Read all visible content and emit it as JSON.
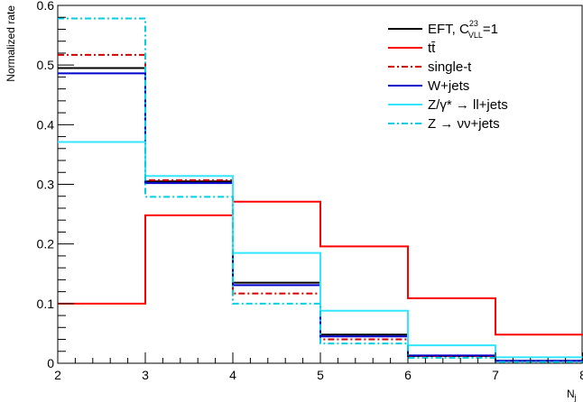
{
  "chart_data": {
    "type": "step-histogram",
    "xlabel": "N",
    "xlabel_sub": "j",
    "ylabel": "Normalized rate",
    "xlim": [
      2,
      8
    ],
    "ylim": [
      0,
      0.6
    ],
    "x_ticks": [
      "2",
      "3",
      "4",
      "5",
      "6",
      "7",
      "8"
    ],
    "y_ticks": [
      "0",
      "0.1",
      "0.2",
      "0.3",
      "0.4",
      "0.5",
      "0.6"
    ],
    "bin_edges": [
      2,
      3,
      4,
      5,
      6,
      7,
      8
    ],
    "legend_position": "top-right",
    "series": [
      {
        "name": "EFT, C",
        "sup": "23",
        "sub": "VLL",
        "tail": "=1",
        "color": "#000000",
        "dash": "solid",
        "values": [
          0.495,
          0.305,
          0.135,
          0.048,
          0.012,
          0.004
        ]
      },
      {
        "name": "tt̄",
        "color": "#ff0000",
        "dash": "solid",
        "values": [
          0.1,
          0.248,
          0.271,
          0.196,
          0.109,
          0.048
        ]
      },
      {
        "name": "single-t",
        "color": "#d40000",
        "dash": "dashdot",
        "values": [
          0.517,
          0.307,
          0.117,
          0.04,
          0.012,
          0.004
        ]
      },
      {
        "name": "W+jets",
        "color": "#0000cc",
        "dash": "solid",
        "values": [
          0.486,
          0.302,
          0.131,
          0.045,
          0.013,
          0.004
        ]
      },
      {
        "name": "Z/γ* → ll+jets",
        "color": "#33e6ff",
        "dash": "solid",
        "values": [
          0.371,
          0.314,
          0.185,
          0.088,
          0.03,
          0.01
        ]
      },
      {
        "name": "Z → νν+jets",
        "color": "#00cfe6",
        "dash": "dashdot",
        "values": [
          0.578,
          0.279,
          0.1,
          0.033,
          0.009,
          0.002
        ]
      }
    ]
  }
}
